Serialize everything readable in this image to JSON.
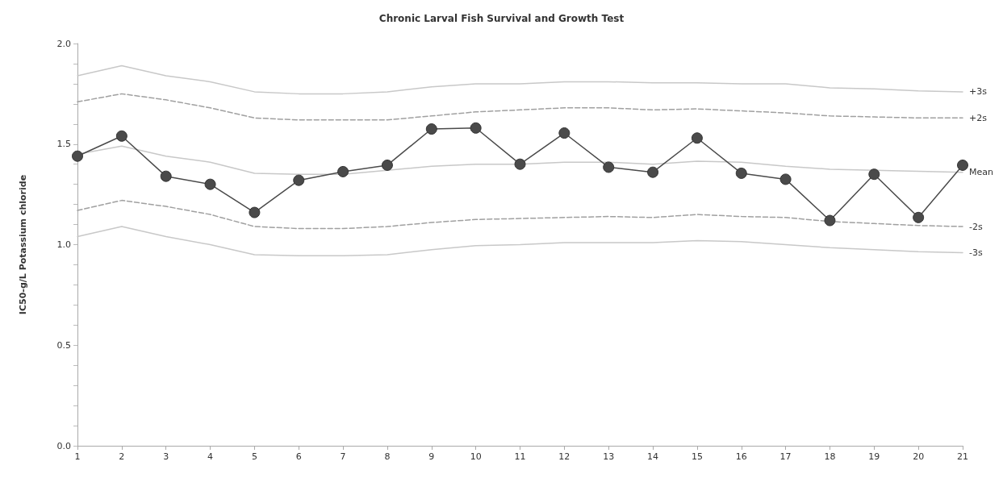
{
  "chart_data": {
    "type": "line",
    "title": "Chronic Larval Fish Survival and Growth Test",
    "ylabel": "IC50-g/L Potassium chloride",
    "x": [
      1,
      2,
      3,
      4,
      5,
      6,
      7,
      8,
      9,
      10,
      11,
      12,
      13,
      14,
      15,
      16,
      17,
      18,
      19,
      20,
      21
    ],
    "xlim": [
      1,
      21
    ],
    "xticks": [
      1,
      2,
      3,
      4,
      5,
      6,
      7,
      8,
      9,
      10,
      11,
      12,
      13,
      14,
      15,
      16,
      17,
      18,
      19,
      20,
      21
    ],
    "ylim": [
      0,
      2
    ],
    "yticks": [
      {
        "value": 0,
        "label": "0.0"
      },
      {
        "value": 0.1,
        "label": null
      },
      {
        "value": 0.2,
        "label": null
      },
      {
        "value": 0.3,
        "label": null
      },
      {
        "value": 0.4,
        "label": null
      },
      0.5,
      {
        "value": 0.6,
        "label": null
      },
      {
        "value": 0.7,
        "label": null
      },
      {
        "value": 0.8,
        "label": null
      },
      {
        "value": 0.9,
        "label": null
      },
      {
        "value": 1,
        "label": "1.0"
      },
      {
        "value": 1.1,
        "label": null
      },
      {
        "value": 1.2,
        "label": null
      },
      {
        "value": 1.3,
        "label": null
      },
      {
        "value": 1.4,
        "label": null
      },
      1.5,
      {
        "value": 1.6,
        "label": null
      },
      {
        "value": 1.7,
        "label": null
      },
      {
        "value": 1.8,
        "label": null
      },
      {
        "value": 1.9,
        "label": null
      },
      {
        "value": 2,
        "label": "2.0"
      }
    ],
    "grid": false,
    "legend": false,
    "marker": "circle",
    "line_style": "solid",
    "series": [
      {
        "name": "+3s",
        "color": "#c8c8c8",
        "marker": "none",
        "values": [
          1.84,
          1.89,
          1.84,
          1.81,
          1.76,
          1.75,
          1.75,
          1.76,
          1.785,
          1.8,
          1.8,
          1.81,
          1.81,
          1.805,
          1.805,
          1.8,
          1.8,
          1.78,
          1.775,
          1.765,
          1.76
        ]
      },
      {
        "name": "+2s",
        "color": "#a0a0a0",
        "marker": "none",
        "line_style": "dashed",
        "values": [
          1.71,
          1.75,
          1.72,
          1.68,
          1.63,
          1.62,
          1.62,
          1.62,
          1.64,
          1.66,
          1.67,
          1.68,
          1.68,
          1.67,
          1.675,
          1.665,
          1.655,
          1.64,
          1.635,
          1.63,
          1.63
        ]
      },
      {
        "name": "Mean",
        "color": "#c8c8c8",
        "marker": "none",
        "values": [
          1.45,
          1.49,
          1.44,
          1.41,
          1.355,
          1.35,
          1.35,
          1.37,
          1.39,
          1.4,
          1.4,
          1.41,
          1.41,
          1.4,
          1.415,
          1.41,
          1.39,
          1.375,
          1.37,
          1.365,
          1.36
        ]
      },
      {
        "name": "-2s",
        "color": "#a0a0a0",
        "marker": "none",
        "line_style": "dashed",
        "values": [
          1.17,
          1.22,
          1.19,
          1.15,
          1.09,
          1.08,
          1.08,
          1.09,
          1.11,
          1.125,
          1.13,
          1.135,
          1.14,
          1.135,
          1.15,
          1.14,
          1.135,
          1.115,
          1.105,
          1.095,
          1.09
        ]
      },
      {
        "name": "-3s",
        "color": "#c8c8c8",
        "marker": "none",
        "values": [
          1.04,
          1.09,
          1.04,
          1.0,
          0.95,
          0.945,
          0.945,
          0.95,
          0.975,
          0.995,
          1.0,
          1.01,
          1.01,
          1.01,
          1.02,
          1.015,
          1.0,
          0.985,
          0.975,
          0.965,
          0.96
        ]
      },
      {
        "color": "#4a4a4a",
        "values": [
          1.44,
          1.54,
          1.34,
          1.3,
          1.16,
          1.32,
          1.363,
          1.395,
          1.575,
          1.58,
          1.4,
          1.555,
          1.385,
          1.36,
          1.53,
          1.355,
          1.325,
          1.12,
          1.35,
          1.135,
          1.395
        ]
      }
    ]
  }
}
